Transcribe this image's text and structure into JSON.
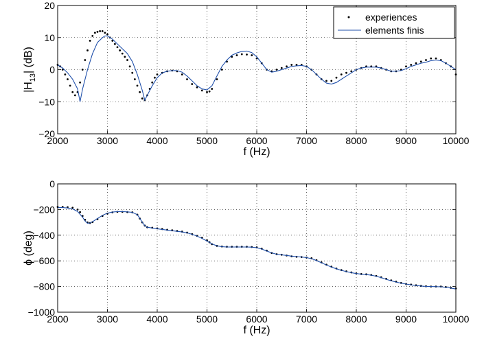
{
  "chart_data": [
    {
      "type": "line",
      "xlabel": "f (Hz)",
      "ylabel_main": "|H",
      "ylabel_sub": "13",
      "ylabel_tail": "| (dB)",
      "xlim": [
        2000,
        10000
      ],
      "ylim": [
        -20,
        20
      ],
      "xticks": [
        2000,
        3000,
        4000,
        5000,
        6000,
        7000,
        8000,
        9000,
        10000
      ],
      "yticks": [
        -20,
        -10,
        0,
        10,
        20
      ],
      "grid": true,
      "legend_position": "top-right",
      "series": [
        {
          "name": "experiences",
          "style": "dots",
          "x": [
            2000,
            2050,
            2100,
            2150,
            2200,
            2250,
            2300,
            2350,
            2400,
            2450,
            2500,
            2550,
            2600,
            2650,
            2700,
            2750,
            2800,
            2850,
            2900,
            2950,
            3000,
            3050,
            3100,
            3150,
            3200,
            3250,
            3300,
            3350,
            3400,
            3450,
            3500,
            3550,
            3600,
            3650,
            3700,
            3750,
            3800,
            3850,
            3900,
            3950,
            4000,
            4100,
            4200,
            4300,
            4400,
            4500,
            4600,
            4700,
            4800,
            4900,
            5000,
            5050,
            5100,
            5200,
            5300,
            5400,
            5500,
            5600,
            5700,
            5800,
            5900,
            6000,
            6100,
            6200,
            6300,
            6400,
            6500,
            6600,
            6700,
            6800,
            6900,
            7000,
            7100,
            7200,
            7300,
            7400,
            7500,
            7600,
            7700,
            7800,
            7900,
            8000,
            8100,
            8200,
            8300,
            8400,
            8500,
            8600,
            8700,
            8800,
            8900,
            9000,
            9100,
            9200,
            9300,
            9400,
            9500,
            9600,
            9700,
            9800,
            9900,
            10000
          ],
          "y": [
            1.5,
            1,
            0,
            -1.5,
            -3,
            -5,
            -7,
            -8,
            -7,
            -4,
            0,
            3,
            6,
            9,
            10.5,
            11.5,
            11.8,
            12,
            12,
            11.5,
            11,
            10,
            9,
            8,
            7,
            6,
            5,
            4,
            3,
            1,
            -1,
            -3,
            -5,
            -7,
            -9,
            -9.5,
            -8,
            -6,
            -4,
            -2.5,
            -1.5,
            -1,
            -0.5,
            -0.3,
            -0.5,
            -1.5,
            -3,
            -4.5,
            -5.5,
            -6.5,
            -7,
            -6.8,
            -6,
            -3,
            0,
            2.5,
            4,
            4.5,
            4.8,
            4.7,
            4.5,
            3.5,
            2,
            0,
            -0.5,
            0,
            0.5,
            1,
            1.5,
            1.5,
            1.5,
            1,
            0,
            -1.5,
            -3,
            -3.5,
            -3.5,
            -2.5,
            -1.5,
            -1,
            -0.5,
            0,
            0.5,
            1,
            1,
            1,
            0.5,
            0,
            -0.5,
            -0.5,
            0,
            1,
            1.5,
            2,
            2.5,
            3,
            3.5,
            3.5,
            3,
            2,
            1,
            -1.5
          ]
        },
        {
          "name": "elements finis",
          "style": "line",
          "color": "#1f4faa",
          "x": [
            2000,
            2100,
            2200,
            2300,
            2400,
            2450,
            2500,
            2600,
            2700,
            2800,
            2900,
            2950,
            3000,
            3100,
            3200,
            3300,
            3400,
            3500,
            3600,
            3700,
            3750,
            3800,
            3900,
            4000,
            4100,
            4200,
            4300,
            4400,
            4500,
            4600,
            4700,
            4800,
            4900,
            5000,
            5100,
            5200,
            5300,
            5400,
            5500,
            5600,
            5700,
            5800,
            5900,
            6000,
            6100,
            6200,
            6300,
            6400,
            6500,
            6600,
            6700,
            6800,
            6900,
            7000,
            7100,
            7200,
            7300,
            7400,
            7500,
            7600,
            7700,
            7800,
            7900,
            8000,
            8100,
            8200,
            8300,
            8400,
            8500,
            8600,
            8700,
            8800,
            8900,
            9000,
            9100,
            9200,
            9300,
            9400,
            9500,
            9600,
            9700,
            9800,
            9900,
            10000
          ],
          "y": [
            1.5,
            0.5,
            -1,
            -3,
            -6,
            -10,
            -6,
            0,
            5,
            8.5,
            10,
            10.5,
            10.5,
            9.5,
            8,
            6.5,
            5,
            2.5,
            -1.5,
            -6.5,
            -9.5,
            -8,
            -5,
            -2.5,
            -1,
            -0.5,
            -0.3,
            -0.3,
            -0.8,
            -2,
            -3.5,
            -5,
            -6,
            -6.3,
            -5,
            -2,
            1,
            3,
            4.5,
            5.2,
            5.7,
            5.8,
            5.3,
            4,
            2,
            0,
            -0.8,
            -0.5,
            0,
            0.5,
            1,
            1.2,
            1.3,
            1,
            0,
            -1.5,
            -3,
            -4.2,
            -4.5,
            -4,
            -3,
            -2,
            -1,
            0,
            0.5,
            0.8,
            0.8,
            0.8,
            0.5,
            0,
            -0.5,
            -0.5,
            -0.3,
            0.3,
            1,
            1.5,
            2,
            2.3,
            2.8,
            3,
            2.8,
            2,
            1,
            0
          ]
        }
      ]
    },
    {
      "type": "line",
      "xlabel": "f (Hz)",
      "ylabel": "ϕ (deg)",
      "xlim": [
        2000,
        10000
      ],
      "ylim": [
        -1000,
        0
      ],
      "xticks": [
        2000,
        3000,
        4000,
        5000,
        6000,
        7000,
        8000,
        9000,
        10000
      ],
      "yticks": [
        -1000,
        -800,
        -600,
        -400,
        -200,
        0
      ],
      "grid": true,
      "series": [
        {
          "name": "experiences",
          "style": "dots",
          "x": [
            2000,
            2100,
            2200,
            2300,
            2400,
            2450,
            2500,
            2550,
            2600,
            2650,
            2700,
            2800,
            2900,
            3000,
            3100,
            3200,
            3300,
            3400,
            3500,
            3600,
            3650,
            3700,
            3750,
            3800,
            3900,
            4000,
            4100,
            4200,
            4300,
            4400,
            4500,
            4600,
            4700,
            4800,
            4900,
            5000,
            5050,
            5100,
            5200,
            5300,
            5400,
            5500,
            5600,
            5700,
            5800,
            5900,
            6000,
            6100,
            6200,
            6300,
            6400,
            6500,
            6600,
            6700,
            6800,
            6900,
            7000,
            7100,
            7200,
            7300,
            7400,
            7500,
            7600,
            7700,
            7800,
            7900,
            8000,
            8100,
            8200,
            8300,
            8400,
            8500,
            8600,
            8700,
            8800,
            8900,
            9000,
            9100,
            9200,
            9300,
            9400,
            9500,
            9600,
            9700,
            9800,
            9900,
            10000
          ],
          "y": [
            -180,
            -180,
            -182,
            -186,
            -200,
            -220,
            -250,
            -280,
            -300,
            -305,
            -298,
            -275,
            -250,
            -232,
            -222,
            -218,
            -218,
            -220,
            -222,
            -240,
            -270,
            -300,
            -325,
            -338,
            -342,
            -347,
            -352,
            -358,
            -362,
            -367,
            -372,
            -380,
            -392,
            -405,
            -420,
            -440,
            -455,
            -470,
            -483,
            -488,
            -490,
            -490,
            -490,
            -490,
            -490,
            -492,
            -495,
            -505,
            -520,
            -538,
            -548,
            -552,
            -558,
            -565,
            -568,
            -570,
            -574,
            -580,
            -595,
            -612,
            -630,
            -645,
            -660,
            -672,
            -682,
            -690,
            -698,
            -703,
            -705,
            -710,
            -718,
            -728,
            -740,
            -752,
            -762,
            -772,
            -780,
            -785,
            -790,
            -795,
            -798,
            -800,
            -800,
            -800,
            -805,
            -810,
            -815
          ]
        },
        {
          "name": "elements finis",
          "style": "line",
          "color": "#1f4faa",
          "x": [
            2000,
            2100,
            2200,
            2300,
            2400,
            2500,
            2550,
            2600,
            2650,
            2700,
            2800,
            2900,
            3000,
            3100,
            3200,
            3300,
            3400,
            3500,
            3600,
            3650,
            3700,
            3750,
            3800,
            3900,
            4000,
            4100,
            4200,
            4300,
            4400,
            4500,
            4600,
            4700,
            4800,
            4900,
            5000,
            5100,
            5200,
            5300,
            5400,
            5500,
            5600,
            5700,
            5800,
            5900,
            6000,
            6100,
            6200,
            6300,
            6400,
            6500,
            6600,
            6700,
            6800,
            6900,
            7000,
            7100,
            7200,
            7300,
            7400,
            7500,
            7600,
            7700,
            7800,
            7900,
            8000,
            8100,
            8200,
            8300,
            8400,
            8500,
            8600,
            8700,
            8800,
            8900,
            9000,
            9100,
            9200,
            9300,
            9400,
            9500,
            9600,
            9700,
            9800,
            9900,
            10000
          ],
          "y": [
            -185,
            -185,
            -188,
            -195,
            -215,
            -260,
            -290,
            -307,
            -305,
            -295,
            -270,
            -245,
            -228,
            -220,
            -216,
            -216,
            -218,
            -222,
            -240,
            -268,
            -300,
            -325,
            -338,
            -344,
            -350,
            -355,
            -360,
            -365,
            -370,
            -375,
            -382,
            -393,
            -407,
            -425,
            -445,
            -468,
            -483,
            -490,
            -492,
            -492,
            -492,
            -492,
            -492,
            -493,
            -498,
            -508,
            -523,
            -538,
            -548,
            -553,
            -558,
            -563,
            -567,
            -570,
            -575,
            -583,
            -598,
            -615,
            -632,
            -648,
            -662,
            -674,
            -684,
            -692,
            -699,
            -704,
            -707,
            -712,
            -720,
            -731,
            -744,
            -755,
            -765,
            -774,
            -781,
            -787,
            -792,
            -796,
            -799,
            -800,
            -801,
            -802,
            -806,
            -812,
            -820
          ]
        }
      ]
    }
  ]
}
